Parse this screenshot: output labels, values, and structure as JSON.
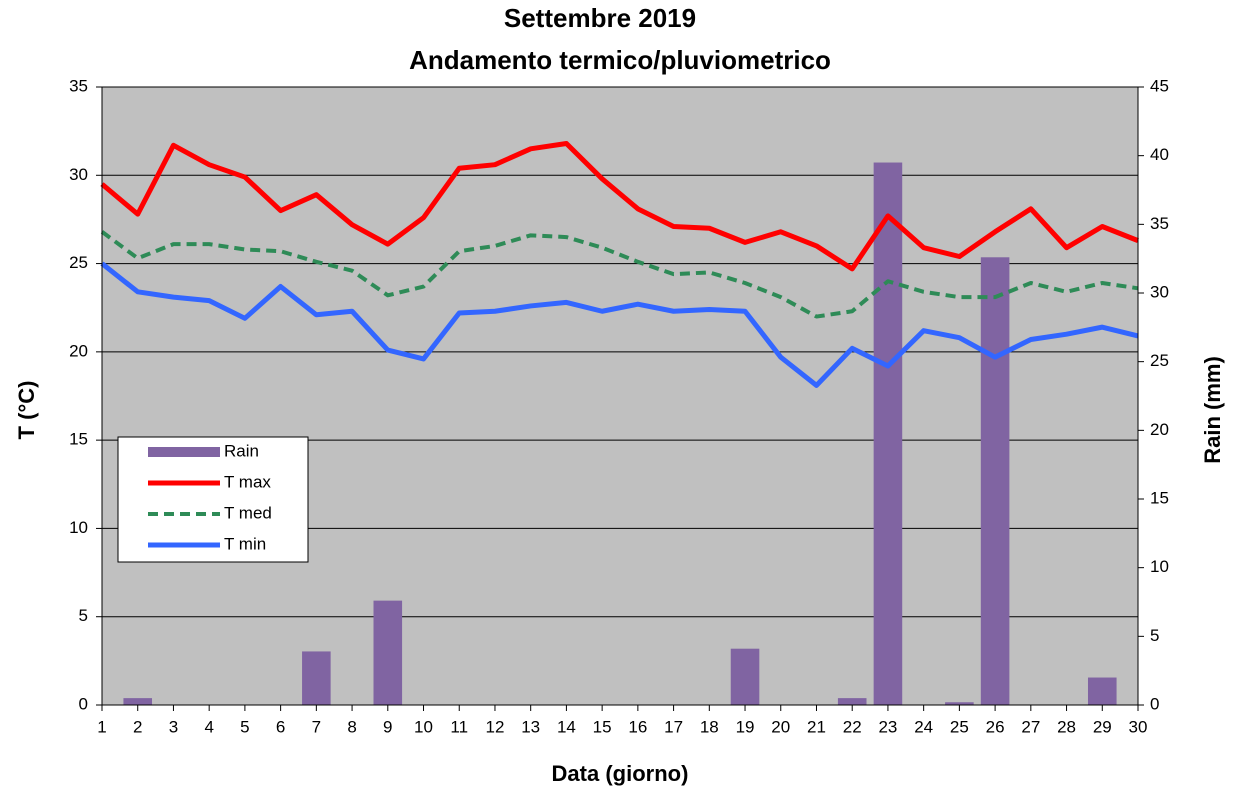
{
  "chart_data": {
    "type": "combo",
    "title": "Settembre 2019",
    "subtitle": "Andamento termico/pluviometrico",
    "x_label": "Data (giorno)",
    "y_label": "T (°C)",
    "y2_label": "Rain (mm)",
    "x": [
      1,
      2,
      3,
      4,
      5,
      6,
      7,
      8,
      9,
      10,
      11,
      12,
      13,
      14,
      15,
      16,
      17,
      18,
      19,
      20,
      21,
      22,
      23,
      24,
      25,
      26,
      27,
      28,
      29,
      30
    ],
    "xlim": [
      1,
      30
    ],
    "xticks": [
      1,
      2,
      3,
      4,
      5,
      6,
      7,
      8,
      9,
      10,
      11,
      12,
      13,
      14,
      15,
      16,
      17,
      18,
      19,
      20,
      21,
      22,
      23,
      24,
      25,
      26,
      27,
      28,
      29,
      30
    ],
    "ylim": [
      0,
      35
    ],
    "yticks": [
      0,
      5,
      10,
      15,
      20,
      25,
      30,
      35
    ],
    "y2lim": [
      0,
      45
    ],
    "y2ticks": [
      0,
      5,
      10,
      15,
      20,
      25,
      30,
      35,
      40,
      45
    ],
    "grid": true,
    "legend": "left",
    "series": [
      {
        "name": "Rain",
        "type": "bar",
        "axis": "y2",
        "color": "#8064a2",
        "values": [
          0,
          0.5,
          0,
          0,
          0,
          0,
          3.9,
          0,
          7.6,
          0,
          0,
          0,
          0,
          0,
          0,
          0,
          0,
          0,
          4.1,
          0,
          0,
          0.5,
          39.5,
          0,
          0.2,
          32.6,
          0,
          0,
          2.0,
          0
        ]
      },
      {
        "name": "T max",
        "type": "line",
        "color": "#ff0000",
        "dash": false,
        "values": [
          29.5,
          27.8,
          31.7,
          30.6,
          29.9,
          28,
          28.9,
          27.2,
          26.1,
          27.6,
          30.4,
          30.6,
          31.5,
          31.8,
          29.8,
          28.1,
          27.1,
          27,
          26.2,
          26.8,
          26,
          24.7,
          27.7,
          25.9,
          25.4,
          26.8,
          28.1,
          25.9,
          27.1,
          26.3
        ]
      },
      {
        "name": "T med",
        "type": "line",
        "color": "#2e8b57",
        "dash": true,
        "values": [
          26.8,
          25.3,
          26.1,
          26.1,
          25.8,
          25.7,
          25.1,
          24.6,
          23.2,
          23.7,
          25.7,
          26,
          26.6,
          26.5,
          25.9,
          25.1,
          24.4,
          24.5,
          23.9,
          23.1,
          22,
          22.3,
          24,
          23.4,
          23.1,
          23.1,
          23.9,
          23.4,
          23.9,
          23.6
        ]
      },
      {
        "name": "T min",
        "type": "line",
        "color": "#3366ff",
        "dash": false,
        "values": [
          25,
          23.4,
          23.1,
          22.9,
          21.9,
          23.7,
          22.1,
          22.3,
          20.1,
          19.6,
          22.2,
          22.3,
          22.6,
          22.8,
          22.3,
          22.7,
          22.3,
          22.4,
          22.3,
          19.7,
          18.1,
          20.2,
          19.2,
          21.2,
          20.8,
          19.7,
          20.7,
          21,
          21.4,
          20.9
        ]
      }
    ]
  }
}
